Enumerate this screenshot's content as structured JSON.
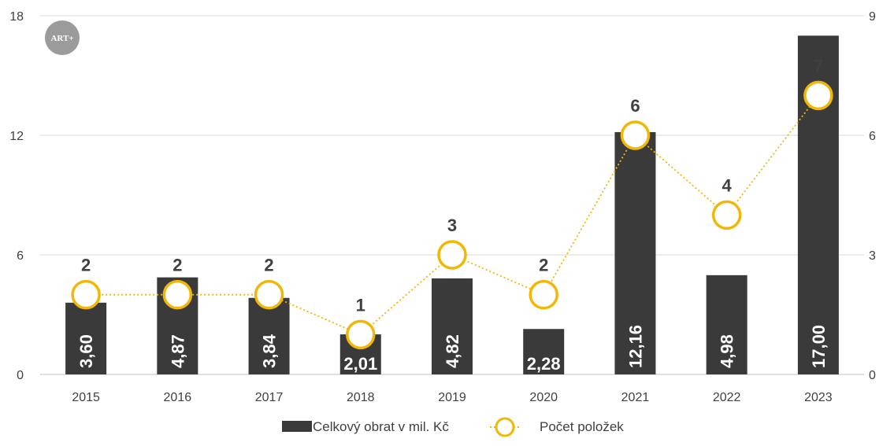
{
  "logo": {
    "text": "ART+"
  },
  "chart_data": {
    "type": "bar",
    "categories": [
      "2015",
      "2016",
      "2017",
      "2018",
      "2019",
      "2020",
      "2021",
      "2022",
      "2023"
    ],
    "series": [
      {
        "name": "Celkový obrat v mil. Kč",
        "type": "bar",
        "axis": "left",
        "values": [
          3.6,
          4.87,
          3.84,
          2.01,
          4.82,
          2.28,
          12.16,
          4.98,
          17.0
        ],
        "labels": [
          "3,60",
          "4,87",
          "3,84",
          "2,01",
          "4,82",
          "2,28",
          "12,16",
          "4,98",
          "17,00"
        ],
        "color": "#3a3a3a"
      },
      {
        "name": "Počet položek",
        "type": "line",
        "axis": "right",
        "values": [
          2,
          2,
          2,
          1,
          3,
          2,
          6,
          4,
          7
        ],
        "labels": [
          "2",
          "2",
          "2",
          "1",
          "3",
          "2",
          "6",
          "4",
          "7"
        ],
        "color": "#f2b705",
        "style": "dotted line with hollow circle markers"
      }
    ],
    "y_left": {
      "lim": [
        0,
        18
      ],
      "ticks": [
        "0",
        "6",
        "12",
        "18"
      ]
    },
    "y_right": {
      "lim": [
        0,
        9
      ],
      "ticks": [
        "0",
        "3",
        "6",
        "9"
      ]
    },
    "grid": true,
    "legend": "bottom",
    "title": "",
    "xlabel": "",
    "ylabel": ""
  }
}
